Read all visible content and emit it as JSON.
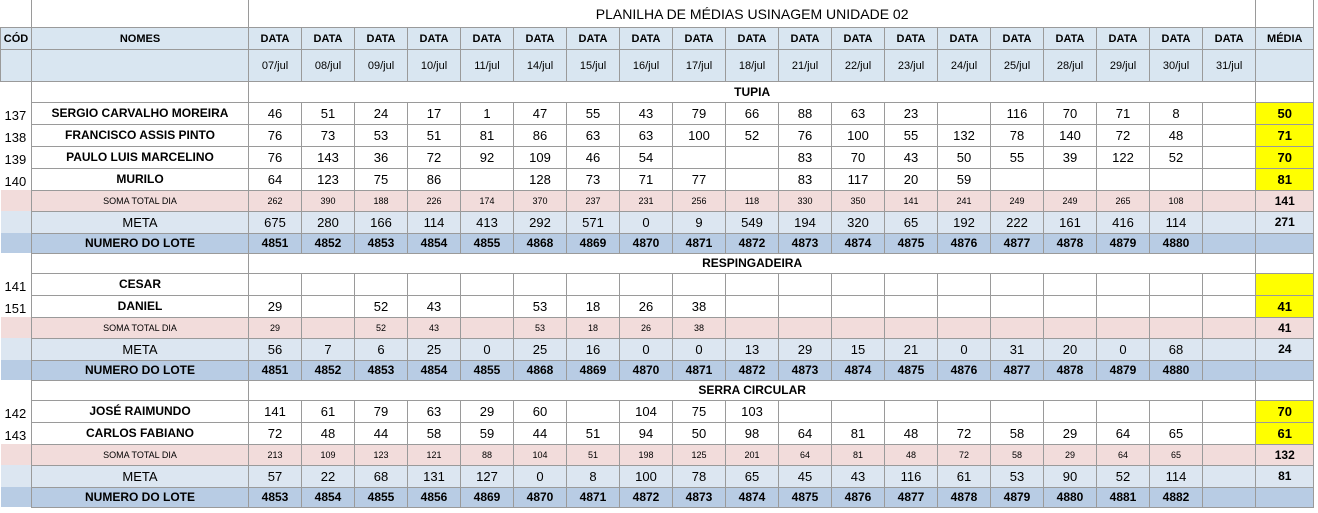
{
  "sheet": {
    "title": "PLANILHA DE MÉDIAS USINAGEM UNIDADE 02",
    "header": {
      "cod": "CÓD",
      "nomes": "NOMES",
      "data_label": "DATA",
      "media": "MÉDIA",
      "dates": [
        "07/jul",
        "08/jul",
        "09/jul",
        "10/jul",
        "11/jul",
        "14/jul",
        "15/jul",
        "16/jul",
        "17/jul",
        "18/jul",
        "21/jul",
        "22/jul",
        "23/jul",
        "24/jul",
        "25/jul",
        "28/jul",
        "29/jul",
        "30/jul",
        "31/jul"
      ]
    },
    "colors": {
      "header_bg": "#d9e6f1",
      "soma_bg": "#f2dcdb",
      "meta_bg": "#dce6f1",
      "lote_bg": "#b8cce4",
      "media_highlight": "#ffff00"
    },
    "sections": [
      {
        "name": "TUPIA",
        "employees": [
          {
            "cod": "137",
            "name": "SERGIO CARVALHO MOREIRA",
            "values": [
              "46",
              "51",
              "24",
              "17",
              "1",
              "47",
              "55",
              "43",
              "79",
              "66",
              "88",
              "63",
              "23",
              "",
              "116",
              "70",
              "71",
              "8",
              ""
            ],
            "media": "50"
          },
          {
            "cod": "138",
            "name": "FRANCISCO ASSIS PINTO",
            "values": [
              "76",
              "73",
              "53",
              "51",
              "81",
              "86",
              "63",
              "63",
              "100",
              "52",
              "76",
              "100",
              "55",
              "132",
              "78",
              "140",
              "72",
              "48",
              ""
            ],
            "media": "71"
          },
          {
            "cod": "139",
            "name": "PAULO LUIS MARCELINO",
            "values": [
              "76",
              "143",
              "36",
              "72",
              "92",
              "109",
              "46",
              "54",
              "",
              "",
              "83",
              "70",
              "43",
              "50",
              "55",
              "39",
              "122",
              "52",
              ""
            ],
            "media": "70"
          },
          {
            "cod": "140",
            "name": "MURILO",
            "values": [
              "64",
              "123",
              "75",
              "86",
              "",
              "128",
              "73",
              "71",
              "77",
              "",
              "83",
              "117",
              "20",
              "59",
              "",
              "",
              "",
              "",
              ""
            ],
            "media": "81"
          }
        ],
        "soma": {
          "label": "SOMA TOTAL DIA",
          "values": [
            "262",
            "390",
            "188",
            "226",
            "174",
            "370",
            "237",
            "231",
            "256",
            "118",
            "330",
            "350",
            "141",
            "241",
            "249",
            "249",
            "265",
            "108",
            ""
          ],
          "media": "141"
        },
        "meta": {
          "label": "META",
          "values": [
            "675",
            "280",
            "166",
            "114",
            "413",
            "292",
            "571",
            "0",
            "9",
            "549",
            "194",
            "320",
            "65",
            "192",
            "222",
            "161",
            "416",
            "114",
            ""
          ],
          "media": "271"
        },
        "lote": {
          "label": "NUMERO DO LOTE",
          "values": [
            "4851",
            "4852",
            "4853",
            "4854",
            "4855",
            "4868",
            "4869",
            "4870",
            "4871",
            "4872",
            "4873",
            "4874",
            "4875",
            "4876",
            "4877",
            "4878",
            "4879",
            "4880",
            ""
          ],
          "media": ""
        }
      },
      {
        "name": "RESPINGADEIRA",
        "employees": [
          {
            "cod": "141",
            "name": "CESAR",
            "values": [
              "",
              "",
              "",
              "",
              "",
              "",
              "",
              "",
              "",
              "",
              "",
              "",
              "",
              "",
              "",
              "",
              "",
              "",
              ""
            ],
            "media": ""
          },
          {
            "cod": "151",
            "name": "DANIEL",
            "values": [
              "29",
              "",
              "52",
              "43",
              "",
              "53",
              "18",
              "26",
              "38",
              "",
              "",
              "",
              "",
              "",
              "",
              "",
              "",
              "",
              ""
            ],
            "media": "41"
          }
        ],
        "soma": {
          "label": "SOMA TOTAL DIA",
          "values": [
            "29",
            "",
            "52",
            "43",
            "",
            "53",
            "18",
            "26",
            "38",
            "",
            "",
            "",
            "",
            "",
            "",
            "",
            "",
            "",
            ""
          ],
          "media": "41"
        },
        "meta": {
          "label": "META",
          "values": [
            "56",
            "7",
            "6",
            "25",
            "0",
            "25",
            "16",
            "0",
            "0",
            "13",
            "29",
            "15",
            "21",
            "0",
            "31",
            "20",
            "0",
            "68",
            ""
          ],
          "media": "24"
        },
        "lote": {
          "label": "NUMERO DO LOTE",
          "values": [
            "4851",
            "4852",
            "4853",
            "4854",
            "4855",
            "4868",
            "4869",
            "4870",
            "4871",
            "4872",
            "4873",
            "4874",
            "4875",
            "4876",
            "4877",
            "4878",
            "4879",
            "4880",
            ""
          ],
          "media": ""
        }
      },
      {
        "name": "SERRA CIRCULAR",
        "employees": [
          {
            "cod": "142",
            "name": "JOSÉ RAIMUNDO",
            "values": [
              "141",
              "61",
              "79",
              "63",
              "29",
              "60",
              "",
              "104",
              "75",
              "103",
              "",
              "",
              "",
              "",
              "",
              "",
              "",
              "",
              ""
            ],
            "media": "70"
          },
          {
            "cod": "143",
            "name": "CARLOS FABIANO",
            "values": [
              "72",
              "48",
              "44",
              "58",
              "59",
              "44",
              "51",
              "94",
              "50",
              "98",
              "64",
              "81",
              "48",
              "72",
              "58",
              "29",
              "64",
              "65",
              ""
            ],
            "media": "61"
          }
        ],
        "soma": {
          "label": "SOMA TOTAL DIA",
          "values": [
            "213",
            "109",
            "123",
            "121",
            "88",
            "104",
            "51",
            "198",
            "125",
            "201",
            "64",
            "81",
            "48",
            "72",
            "58",
            "29",
            "64",
            "65",
            ""
          ],
          "media": "132"
        },
        "meta": {
          "label": "META",
          "values": [
            "57",
            "22",
            "68",
            "131",
            "127",
            "0",
            "8",
            "100",
            "78",
            "65",
            "45",
            "43",
            "116",
            "61",
            "53",
            "90",
            "52",
            "114",
            ""
          ],
          "media": "81"
        },
        "lote": {
          "label": "NUMERO DO LOTE",
          "values": [
            "4853",
            "4854",
            "4855",
            "4856",
            "4869",
            "4870",
            "4871",
            "4872",
            "4873",
            "4874",
            "4875",
            "4876",
            "4877",
            "4878",
            "4879",
            "4880",
            "4881",
            "4882",
            ""
          ],
          "media": ""
        }
      }
    ]
  }
}
